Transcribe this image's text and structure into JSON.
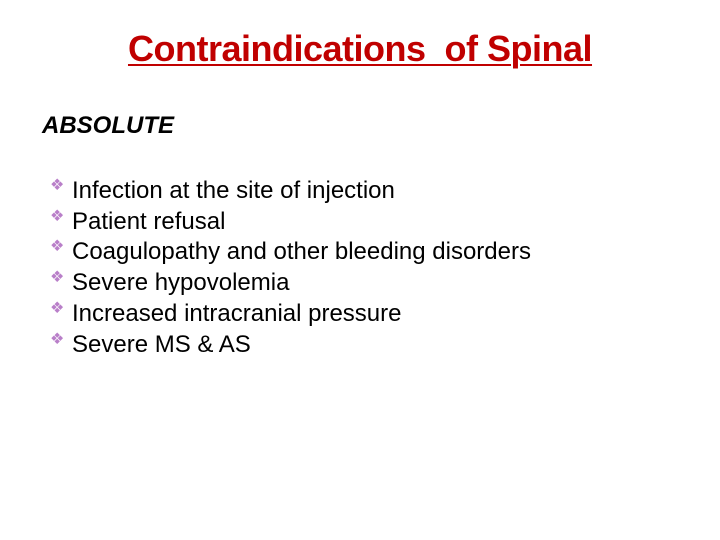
{
  "title": "Contraindications  of Spinal",
  "title_font_size": 36,
  "title_color": "#c00000",
  "subheading": "ABSOLUTE",
  "subheading_font_size": 24,
  "subheading_color": "#000000",
  "list_font_size": 24,
  "list_text_color": "#000000",
  "bullet_color": "#b97fc9",
  "items": [
    "Infection at the site of injection",
    "Patient  refusal",
    "Coagulopathy  and other bleeding disorders",
    "Severe hypovolemia",
    "Increased intracranial pressure",
    "Severe MS & AS"
  ]
}
